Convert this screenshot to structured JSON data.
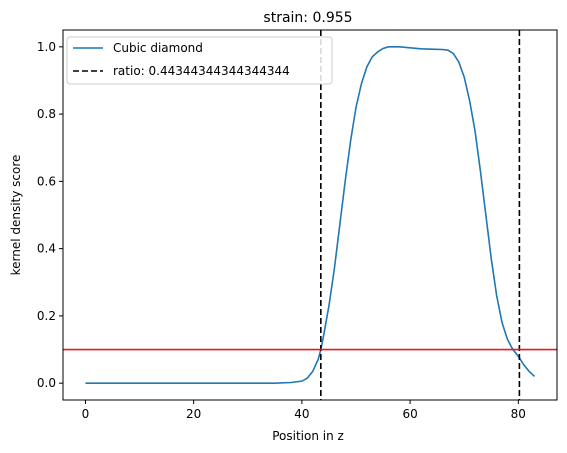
{
  "chart_data": {
    "type": "line",
    "title": "strain: 0.955",
    "xlabel": "Position in z",
    "ylabel": "kernel density score",
    "xlim": [
      -4.15,
      87.15
    ],
    "ylim": [
      -0.05,
      1.05
    ],
    "xticks": [
      0,
      20,
      40,
      60,
      80
    ],
    "yticks": [
      0.0,
      0.2,
      0.4,
      0.6,
      0.8,
      1.0
    ],
    "xtick_labels": [
      "0",
      "20",
      "40",
      "60",
      "80"
    ],
    "ytick_labels": [
      "0.0",
      "0.2",
      "0.4",
      "0.6",
      "0.8",
      "1.0"
    ],
    "grid": false,
    "legend_position": "upper left",
    "series": [
      {
        "name": "Cubic diamond",
        "color": "#1f77b4",
        "style": "solid",
        "x": [
          0,
          5,
          10,
          15,
          20,
          25,
          30,
          35,
          38,
          40,
          41,
          42,
          43,
          43.5,
          44,
          45,
          46,
          47,
          48,
          49,
          50,
          51,
          52,
          53,
          54,
          55,
          56,
          57,
          58,
          60,
          62,
          64,
          66,
          67,
          68,
          69,
          70,
          71,
          72,
          73,
          74,
          75,
          76,
          77,
          78,
          79,
          80,
          81,
          82,
          83
        ],
        "y": [
          0.0,
          0.0,
          0.0,
          0.0,
          0.0,
          0.0,
          0.0,
          0.0,
          0.002,
          0.006,
          0.015,
          0.035,
          0.07,
          0.1,
          0.14,
          0.23,
          0.34,
          0.47,
          0.6,
          0.72,
          0.82,
          0.89,
          0.94,
          0.97,
          0.985,
          0.995,
          1.0,
          1.0,
          1.0,
          0.997,
          0.994,
          0.993,
          0.992,
          0.99,
          0.98,
          0.955,
          0.91,
          0.84,
          0.75,
          0.63,
          0.5,
          0.37,
          0.26,
          0.18,
          0.13,
          0.1,
          0.08,
          0.055,
          0.035,
          0.02
        ]
      }
    ],
    "vlines": [
      {
        "name": "ratio: 0.44344344344344344",
        "x": 43.5,
        "color": "#000000",
        "style": "dashed"
      },
      {
        "x": 80.2,
        "color": "#000000",
        "style": "dashed"
      }
    ],
    "hlines": [
      {
        "y": 0.1,
        "color": "#e41a1c",
        "style": "solid"
      }
    ]
  }
}
